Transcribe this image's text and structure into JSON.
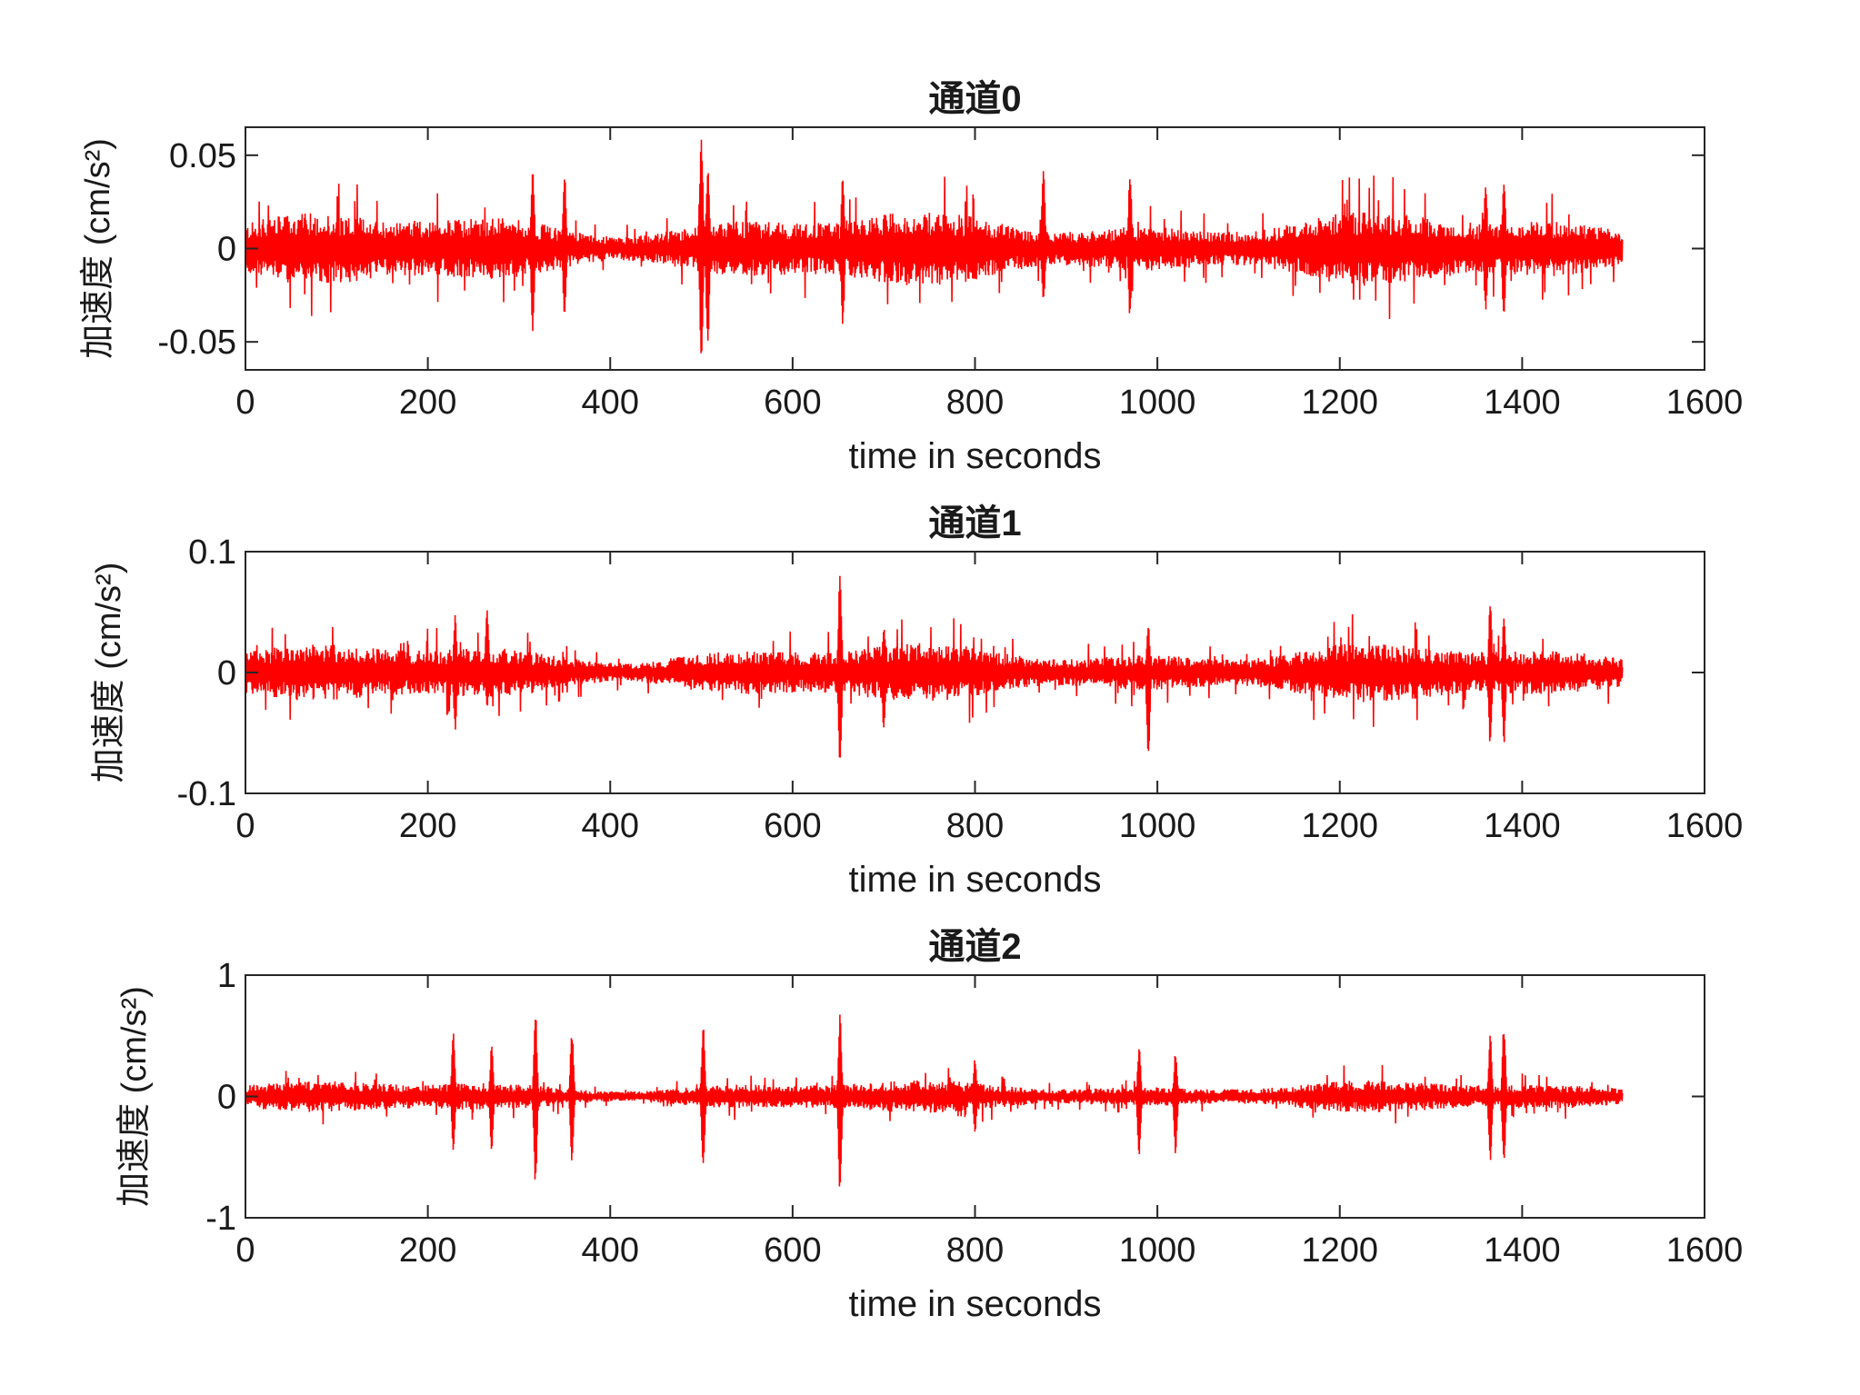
{
  "chart_data": [
    {
      "type": "line",
      "title": "通道0",
      "xlabel": "time in seconds",
      "ylabel": "加速度 (cm/s²)",
      "xlim": [
        0,
        1600
      ],
      "ylim": [
        -0.065,
        0.065
      ],
      "x_ticks": [
        0,
        200,
        400,
        600,
        800,
        1000,
        1200,
        1400,
        1600
      ],
      "x_tick_labels": [
        "0",
        "200",
        "400",
        "600",
        "800",
        "1000",
        "1200",
        "1400",
        "1600"
      ],
      "y_ticks": [
        -0.05,
        0,
        0.05
      ],
      "y_tick_labels": [
        "-0.05",
        "0",
        "0.05"
      ],
      "grid": false,
      "color": "#ff0000",
      "series": [
        {
          "x_range": [
            0,
            1510
          ],
          "baseline_amplitude": 0.018,
          "peaks": [
            {
              "x": 315,
              "max": 0.046,
              "min": -0.046
            },
            {
              "x": 350,
              "max": 0.04,
              "min": -0.038
            },
            {
              "x": 500,
              "max": 0.063,
              "min": -0.063
            },
            {
              "x": 507,
              "max": 0.045,
              "min": -0.055
            },
            {
              "x": 655,
              "max": 0.04,
              "min": -0.043
            },
            {
              "x": 875,
              "max": 0.047,
              "min": -0.03
            },
            {
              "x": 970,
              "max": 0.042,
              "min": -0.038
            },
            {
              "x": 1380,
              "max": 0.038,
              "min": -0.04
            },
            {
              "x": 1360,
              "max": 0.035,
              "min": -0.035
            }
          ]
        }
      ]
    },
    {
      "type": "line",
      "title": "通道1",
      "xlabel": "time in seconds",
      "ylabel": "加速度 (cm/s²)",
      "xlim": [
        0,
        1600
      ],
      "ylim": [
        -0.1,
        0.1
      ],
      "x_ticks": [
        0,
        200,
        400,
        600,
        800,
        1000,
        1200,
        1400,
        1600
      ],
      "x_tick_labels": [
        "0",
        "200",
        "400",
        "600",
        "800",
        "1000",
        "1200",
        "1400",
        "1600"
      ],
      "y_ticks": [
        -0.1,
        0,
        0.1
      ],
      "y_tick_labels": [
        "-0.1",
        "0",
        "0.1"
      ],
      "grid": false,
      "color": "#ff0000",
      "series": [
        {
          "x_range": [
            0,
            1510
          ],
          "baseline_amplitude": 0.022,
          "peaks": [
            {
              "x": 230,
              "max": 0.048,
              "min": -0.048
            },
            {
              "x": 265,
              "max": 0.055,
              "min": -0.03
            },
            {
              "x": 652,
              "max": 0.085,
              "min": -0.083
            },
            {
              "x": 700,
              "max": 0.04,
              "min": -0.05
            },
            {
              "x": 990,
              "max": 0.04,
              "min": -0.075
            },
            {
              "x": 1365,
              "max": 0.06,
              "min": -0.062
            },
            {
              "x": 1380,
              "max": 0.045,
              "min": -0.06
            }
          ]
        }
      ]
    },
    {
      "type": "line",
      "title": "通道2",
      "xlabel": "time in seconds",
      "ylabel": "加速度 (cm/s²)",
      "xlim": [
        0,
        1600
      ],
      "ylim": [
        -1,
        1
      ],
      "x_ticks": [
        0,
        200,
        400,
        600,
        800,
        1000,
        1200,
        1400,
        1600
      ],
      "x_tick_labels": [
        "0",
        "200",
        "400",
        "600",
        "800",
        "1000",
        "1200",
        "1400",
        "1600"
      ],
      "y_ticks": [
        -1,
        0,
        1
      ],
      "y_tick_labels": [
        "-1",
        "0",
        "1"
      ],
      "grid": false,
      "color": "#ff0000",
      "series": [
        {
          "x_range": [
            0,
            1510
          ],
          "baseline_amplitude": 0.12,
          "peaks": [
            {
              "x": 228,
              "max": 0.55,
              "min": -0.45
            },
            {
              "x": 270,
              "max": 0.42,
              "min": -0.47
            },
            {
              "x": 318,
              "max": 0.72,
              "min": -0.75
            },
            {
              "x": 358,
              "max": 0.55,
              "min": -0.55
            },
            {
              "x": 502,
              "max": 0.62,
              "min": -0.63
            },
            {
              "x": 652,
              "max": 0.68,
              "min": -0.82
            },
            {
              "x": 800,
              "max": 0.32,
              "min": -0.3
            },
            {
              "x": 980,
              "max": 0.42,
              "min": -0.5
            },
            {
              "x": 1020,
              "max": 0.38,
              "min": -0.48
            },
            {
              "x": 1365,
              "max": 0.52,
              "min": -0.55
            },
            {
              "x": 1380,
              "max": 0.6,
              "min": -0.58
            }
          ]
        }
      ]
    }
  ]
}
